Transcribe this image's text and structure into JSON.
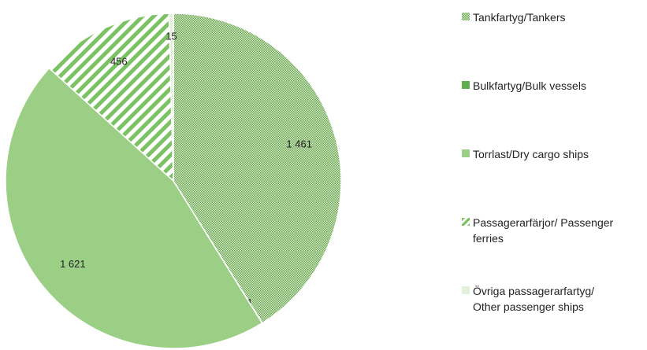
{
  "chart_data": {
    "type": "pie",
    "series": [
      {
        "name": "Tankfartyg/Tankers",
        "color": "#6aa84f",
        "pattern": "checker",
        "value": 1461,
        "value_label": "1 461"
      },
      {
        "name": "Bulkfartyg/Bulk vessels",
        "color": "#5fae4f",
        "pattern": "solid",
        "value": 1,
        "value_label": "1"
      },
      {
        "name": "Torrlast/Dry cargo ships",
        "color": "#9ccf86",
        "pattern": "solid",
        "value": 1621,
        "value_label": "1 621"
      },
      {
        "name": "Passagerarfärjor/ Passenger ferries",
        "color": "#7cc264",
        "pattern": "stripes",
        "value": 456,
        "value_label": "456"
      },
      {
        "name": "Övriga passagerarfartyg/ Other passenger ships",
        "color": "#e3f1dc",
        "pattern": "solid",
        "value": 15,
        "value_label": "15"
      }
    ],
    "legend": "right"
  }
}
